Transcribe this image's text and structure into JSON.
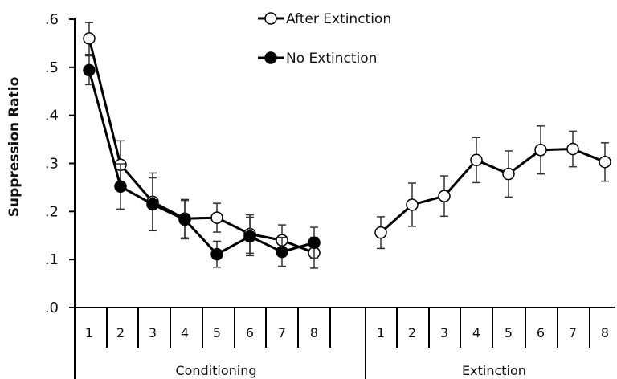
{
  "chart_data": {
    "type": "line",
    "xlabel": "",
    "ylabel": "Suppression Ratio",
    "ylim": [
      0,
      0.6
    ],
    "yticks": [
      ".0",
      ".1",
      ".2",
      ".3",
      ".4",
      ".5",
      ".6"
    ],
    "phases": [
      {
        "label": "Conditioning",
        "categories": [
          "1",
          "2",
          "3",
          "4",
          "5",
          "6",
          "7",
          "8"
        ]
      },
      {
        "label": "Extinction",
        "categories": [
          "1",
          "2",
          "3",
          "4",
          "5",
          "6",
          "7",
          "8"
        ]
      }
    ],
    "legend": {
      "position": "top-center"
    },
    "series": [
      {
        "name": "After Extinction",
        "marker": "open-circle",
        "color": "#000000",
        "segments": [
          {
            "phase": 0,
            "values": [
              0.56,
              0.297,
              0.22,
              0.185,
              0.187,
              0.153,
              0.14,
              0.114
            ],
            "errors": [
              0.033,
              0.05,
              0.06,
              0.04,
              0.03,
              0.04,
              0.032,
              0.032
            ]
          },
          {
            "phase": 1,
            "values": [
              0.156,
              0.214,
              0.232,
              0.307,
              0.278,
              0.328,
              0.33,
              0.303
            ],
            "errors": [
              0.033,
              0.045,
              0.042,
              0.047,
              0.048,
              0.05,
              0.037,
              0.04
            ]
          }
        ]
      },
      {
        "name": "No Extinction",
        "marker": "filled-circle",
        "color": "#000000",
        "segments": [
          {
            "phase": 0,
            "values": [
              0.494,
              0.252,
              0.215,
              0.183,
              0.111,
              0.148,
              0.116,
              0.135
            ],
            "errors": [
              0.03,
              0.047,
              0.055,
              0.04,
              0.027,
              0.04,
              0.03,
              0.032
            ]
          }
        ]
      }
    ]
  }
}
